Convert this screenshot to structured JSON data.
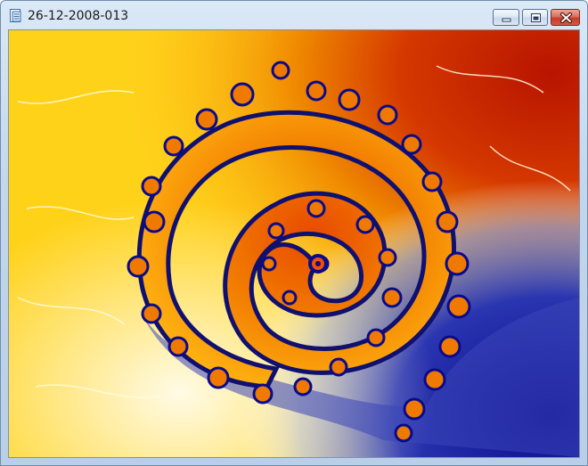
{
  "window": {
    "title": "26-12-2008-013",
    "controls": {
      "minimize": "minimize-icon",
      "maximize": "maximize-icon",
      "close": "close-icon"
    }
  },
  "image": {
    "palette": {
      "deep_red": "#b81400",
      "orange": "#f07a00",
      "yellow": "#ffd21a",
      "pale_yellow": "#fff7c8",
      "navy": "#0a0a8c",
      "light_blue": "#c8d2f0"
    }
  }
}
